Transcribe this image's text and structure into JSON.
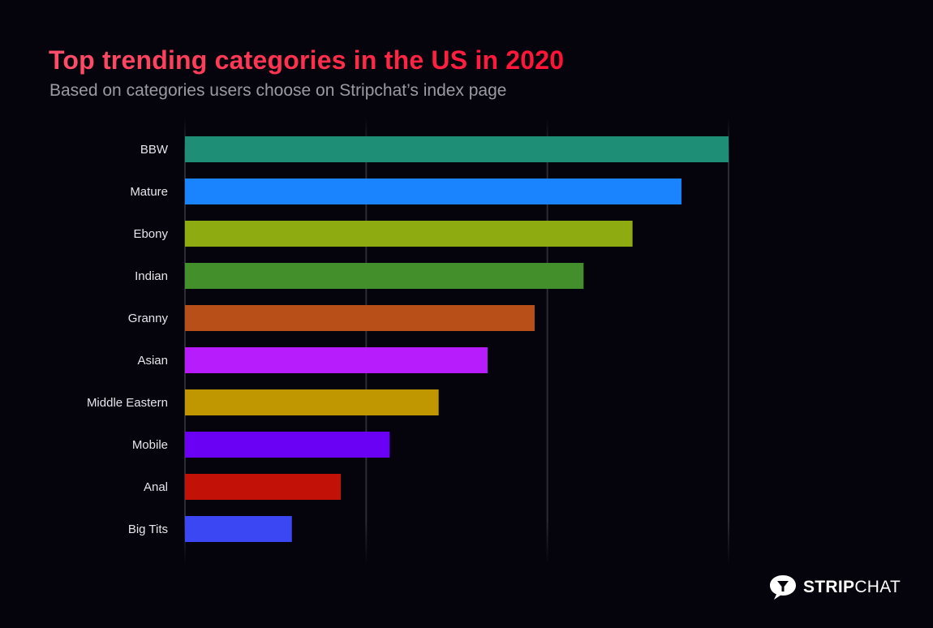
{
  "chart_data": {
    "type": "bar",
    "orientation": "horizontal",
    "title": "Top trending categories in the US in 2020",
    "subtitle": "Based on categories users choose on Stripchat’s index page",
    "xlabel": "",
    "ylabel": "",
    "categories": [
      "BBW",
      "Mature",
      "Ebony",
      "Indian",
      "Granny",
      "Asian",
      "Middle Eastern",
      "Mobile",
      "Anal",
      "Big Tits"
    ],
    "values": [
      3.0,
      2.74,
      2.47,
      2.2,
      1.93,
      1.67,
      1.4,
      1.13,
      0.86,
      0.59
    ],
    "value_units": "relative popularity (unlabeled axis, gridline = 1 unit)",
    "colors": [
      "#1e8f76",
      "#1a84ff",
      "#8fab12",
      "#428f2c",
      "#b94f18",
      "#b71cfc",
      "#c09700",
      "#6a00f4",
      "#c21106",
      "#3a47f2"
    ],
    "xlim": [
      0,
      3
    ],
    "gridlines": [
      0,
      1,
      2,
      3
    ],
    "grid": true,
    "tick_labels_shown": false,
    "legend": "none"
  },
  "branding": {
    "logo_bold": "STRIP",
    "logo_light": "CHAT",
    "logo_icon": "chat-bubble-cocktail-icon"
  },
  "colors": {
    "background": "#05030c",
    "title_start": "#ff4e6a",
    "title_end": "#ff1236",
    "subtitle": "#9b9aa2",
    "label": "#e6e6ea",
    "grid": "#2a2a30"
  }
}
